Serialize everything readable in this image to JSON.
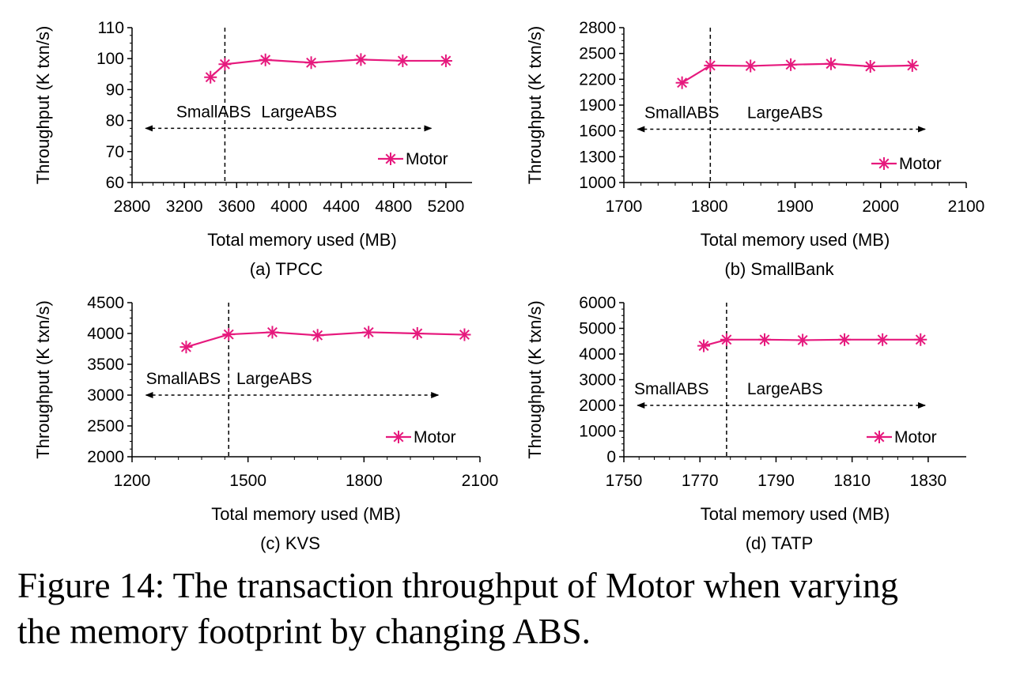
{
  "colors": {
    "series": "#e6197d",
    "axis": "#000000"
  },
  "caption": {
    "line1": "Figure 14: The transaction throughput of Motor when varying",
    "line2": "the memory footprint by changing ABS."
  },
  "chart_data": [
    {
      "type": "line",
      "subtitle": "(a) TPCC",
      "xlabel": "Total memory used (MB)",
      "ylabel": "Throughput (K txn/s)",
      "xlim": [
        2800,
        5400
      ],
      "xticks": [
        2800,
        3200,
        3600,
        4000,
        4400,
        4800,
        5200
      ],
      "ylim": [
        60,
        110
      ],
      "yticks": [
        60,
        70,
        80,
        90,
        100,
        110
      ],
      "divider_x": 3510,
      "region_left": "SmallABS",
      "region_right": "LargeABS",
      "arrow_y": 77.5,
      "series": [
        {
          "name": "Motor",
          "x": [
            3400,
            3510,
            3820,
            4170,
            4550,
            4870,
            5200
          ],
          "y": [
            94,
            98.2,
            99.6,
            98.7,
            99.7,
            99.3,
            99.3
          ]
        }
      ]
    },
    {
      "type": "line",
      "subtitle": "(b) SmallBank",
      "xlabel": "Total memory used (MB)",
      "ylabel": "Throughput (K txn/s)",
      "xlim": [
        1700,
        2100
      ],
      "xticks": [
        1700,
        1800,
        1900,
        2000,
        2100
      ],
      "ylim": [
        1000,
        2800
      ],
      "yticks": [
        1000,
        1300,
        1600,
        1900,
        2200,
        2500,
        2800
      ],
      "divider_x": 1801,
      "region_left": "SmallABS",
      "region_right": "LargeABS",
      "arrow_y": 1620,
      "series": [
        {
          "name": "Motor",
          "x": [
            1768,
            1801,
            1848,
            1895,
            1942,
            1988,
            2037
          ],
          "y": [
            2160,
            2360,
            2355,
            2370,
            2380,
            2350,
            2360
          ]
        }
      ]
    },
    {
      "type": "line",
      "subtitle": "(c) KVS",
      "xlabel": "Total memory used (MB)",
      "ylabel": "Throughput (K txn/s)",
      "xlim": [
        1200,
        2100
      ],
      "xticks": [
        1200,
        1500,
        1800,
        2100
      ],
      "ylim": [
        2000,
        4500
      ],
      "yticks": [
        2000,
        2500,
        3000,
        3500,
        4000,
        4500
      ],
      "divider_x": 1450,
      "region_left": "SmallABS",
      "region_right": "LargeABS",
      "arrow_y": 3000,
      "series": [
        {
          "name": "Motor",
          "x": [
            1340,
            1450,
            1563,
            1680,
            1812,
            1938,
            2060
          ],
          "y": [
            3780,
            3985,
            4020,
            3970,
            4020,
            4000,
            3980
          ]
        }
      ]
    },
    {
      "type": "line",
      "subtitle": "(d) TATP",
      "xlabel": "Total memory used (MB)",
      "ylabel": "Throughput (K txn/s)",
      "xlim": [
        1750,
        1840
      ],
      "xticks": [
        1750,
        1770,
        1790,
        1810,
        1830
      ],
      "ylim": [
        0,
        6000
      ],
      "yticks": [
        0,
        1000,
        2000,
        3000,
        4000,
        5000,
        6000
      ],
      "divider_x": 1777,
      "region_left": "SmallABS",
      "region_right": "LargeABS",
      "arrow_y": 2000,
      "series": [
        {
          "name": "Motor",
          "x": [
            1771,
            1777,
            1787,
            1797,
            1808,
            1818,
            1828
          ],
          "y": [
            4320,
            4560,
            4560,
            4540,
            4560,
            4560,
            4560
          ]
        }
      ]
    }
  ]
}
